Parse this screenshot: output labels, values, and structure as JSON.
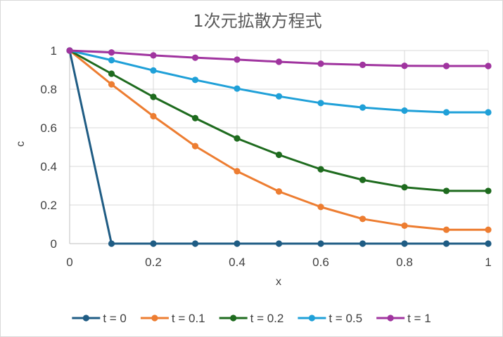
{
  "chart_data": {
    "type": "line",
    "title": "1次元拡散方程式",
    "xlabel": "x",
    "ylabel": "c",
    "xlim": [
      0,
      1
    ],
    "ylim": [
      0,
      1
    ],
    "xticks": [
      "0",
      "0.2",
      "0.4",
      "0.6",
      "0.8",
      "1"
    ],
    "yticks": [
      "0",
      "0.2",
      "0.4",
      "0.6",
      "0.8",
      "1"
    ],
    "grid": true,
    "legend_position": "bottom",
    "x": [
      0,
      0.1,
      0.2,
      0.3,
      0.4,
      0.5,
      0.6,
      0.7,
      0.8,
      0.9,
      1.0
    ],
    "series": [
      {
        "name": "t = 0",
        "color": "#1f5c84",
        "values": [
          1,
          0,
          0,
          0,
          0,
          0,
          0,
          0,
          0,
          0,
          0
        ]
      },
      {
        "name": "t = 0.1",
        "color": "#ed7d31",
        "values": [
          1,
          0.825,
          0.66,
          0.505,
          0.375,
          0.27,
          0.19,
          0.128,
          0.093,
          0.072,
          0.072
        ]
      },
      {
        "name": "t = 0.2",
        "color": "#1e6b1e",
        "values": [
          1,
          0.88,
          0.76,
          0.65,
          0.545,
          0.46,
          0.385,
          0.33,
          0.292,
          0.273,
          0.273
        ]
      },
      {
        "name": "t = 0.5",
        "color": "#1fa0d8",
        "values": [
          1,
          0.95,
          0.897,
          0.848,
          0.803,
          0.763,
          0.728,
          0.705,
          0.689,
          0.68,
          0.68
        ]
      },
      {
        "name": "t = 1",
        "color": "#a0349f",
        "values": [
          1,
          0.99,
          0.975,
          0.963,
          0.953,
          0.942,
          0.932,
          0.926,
          0.921,
          0.92,
          0.92
        ]
      }
    ]
  }
}
